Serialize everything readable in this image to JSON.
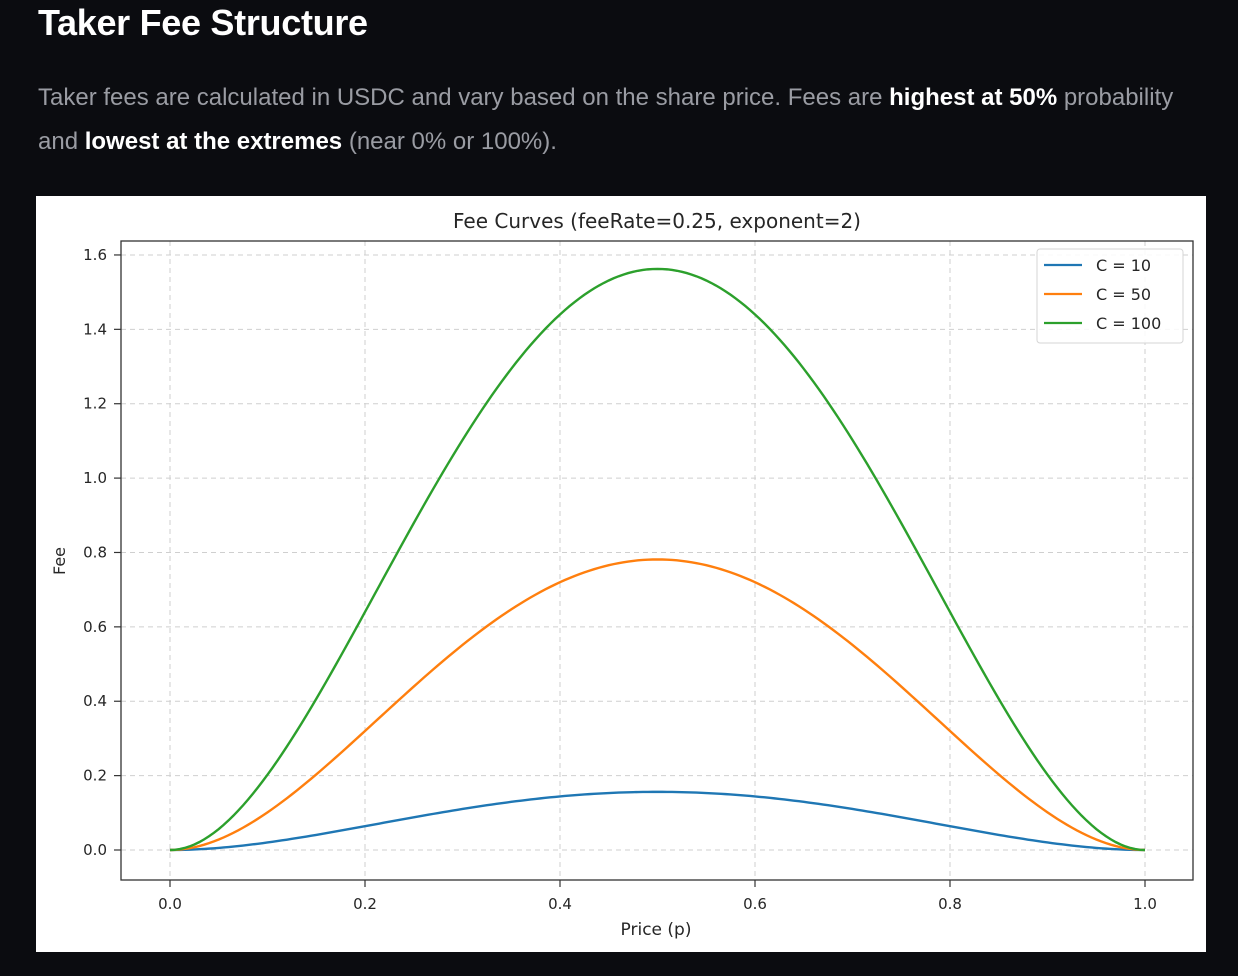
{
  "page": {
    "title": "Taker Fee Structure",
    "description": {
      "part1": "Taker fees are calculated in USDC and vary based on the share price. Fees are ",
      "bold1": "highest at 50%",
      "part2": " probability and ",
      "bold2": "lowest at the extremes",
      "part3": " (near 0% or 100%)."
    }
  },
  "colors": {
    "background": "#0b0c10",
    "c10": "#1f77b4",
    "c50": "#ff7f0e",
    "c100": "#2ca02c"
  },
  "chart_data": {
    "type": "line",
    "title": "Fee Curves (feeRate=0.25, exponent=2)",
    "xlabel": "Price (p)",
    "ylabel": "Fee",
    "xlim": [
      -0.05,
      1.05
    ],
    "ylim": [
      -0.078,
      1.64
    ],
    "xticks": [
      "0.0",
      "0.2",
      "0.4",
      "0.6",
      "0.8",
      "1.0"
    ],
    "yticks": [
      "0.0",
      "0.2",
      "0.4",
      "0.6",
      "0.8",
      "1.0",
      "1.2",
      "1.4",
      "1.6"
    ],
    "grid": true,
    "legend_position": "upper right",
    "x": [
      0.0,
      0.1,
      0.2,
      0.3,
      0.4,
      0.5,
      0.6,
      0.7,
      0.8,
      0.9,
      1.0
    ],
    "series": [
      {
        "name": "C = 10",
        "color": "#1f77b4",
        "values": [
          0.0,
          0.0203,
          0.064,
          0.1103,
          0.144,
          0.1563,
          0.144,
          0.1103,
          0.064,
          0.0203,
          0.0
        ]
      },
      {
        "name": "C = 50",
        "color": "#ff7f0e",
        "values": [
          0.0,
          0.1013,
          0.32,
          0.5513,
          0.72,
          0.7813,
          0.72,
          0.5513,
          0.32,
          0.1013,
          0.0
        ]
      },
      {
        "name": "C = 100",
        "color": "#2ca02c",
        "values": [
          0.0,
          0.2025,
          0.64,
          1.1025,
          1.44,
          1.5625,
          1.44,
          1.1025,
          0.64,
          0.2025,
          0.0
        ]
      }
    ]
  }
}
